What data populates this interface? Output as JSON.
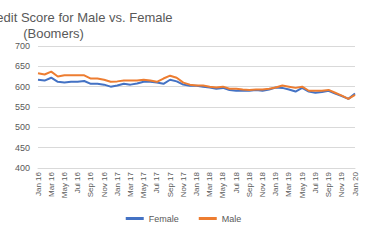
{
  "chart_data": {
    "type": "line",
    "title": "Average Credit Score for Male vs. Female (Boomers)",
    "categories": [
      "Jan 16",
      null,
      "Mar 16",
      null,
      "May 16",
      null,
      "Jul 16",
      null,
      "Sep 16",
      null,
      "Nov 16",
      null,
      "Jan 17",
      null,
      "Mar 17",
      null,
      "May 17",
      null,
      "Jul 17",
      null,
      "Sep 17",
      null,
      "Nov 17",
      null,
      "Jan 18",
      null,
      "Mar 18",
      null,
      "May 18",
      null,
      "Jul 18",
      null,
      "Sep 18",
      null,
      "Nov 18",
      null,
      "Jan 19",
      null,
      "Mar 19",
      null,
      "May 19",
      null,
      "Jul 19",
      null,
      "Sep 19",
      null,
      "Nov 19",
      null,
      "Jan 20"
    ],
    "series": [
      {
        "name": "Female",
        "color": "#4472c4",
        "values": [
          617,
          615,
          622,
          612,
          610,
          612,
          612,
          614,
          607,
          607,
          605,
          600,
          603,
          607,
          605,
          608,
          612,
          612,
          610,
          607,
          617,
          613,
          605,
          602,
          602,
          600,
          598,
          595,
          597,
          592,
          590,
          590,
          590,
          592,
          590,
          593,
          598,
          597,
          593,
          588,
          597,
          588,
          585,
          587,
          590,
          583,
          577,
          570,
          583
        ]
      },
      {
        "name": "Male",
        "color": "#ed7d31",
        "values": [
          633,
          630,
          637,
          625,
          628,
          628,
          628,
          628,
          620,
          620,
          617,
          612,
          613,
          615,
          615,
          615,
          617,
          615,
          612,
          620,
          627,
          622,
          610,
          605,
          603,
          603,
          600,
          598,
          600,
          595,
          595,
          593,
          592,
          593,
          593,
          595,
          598,
          603,
          600,
          597,
          600,
          590,
          590,
          590,
          592,
          585,
          578,
          570,
          580
        ]
      }
    ],
    "ylim": [
      400,
      700
    ],
    "yticks": [
      400,
      450,
      500,
      550,
      600,
      650,
      700
    ],
    "grid": true,
    "legend": "bottom"
  }
}
